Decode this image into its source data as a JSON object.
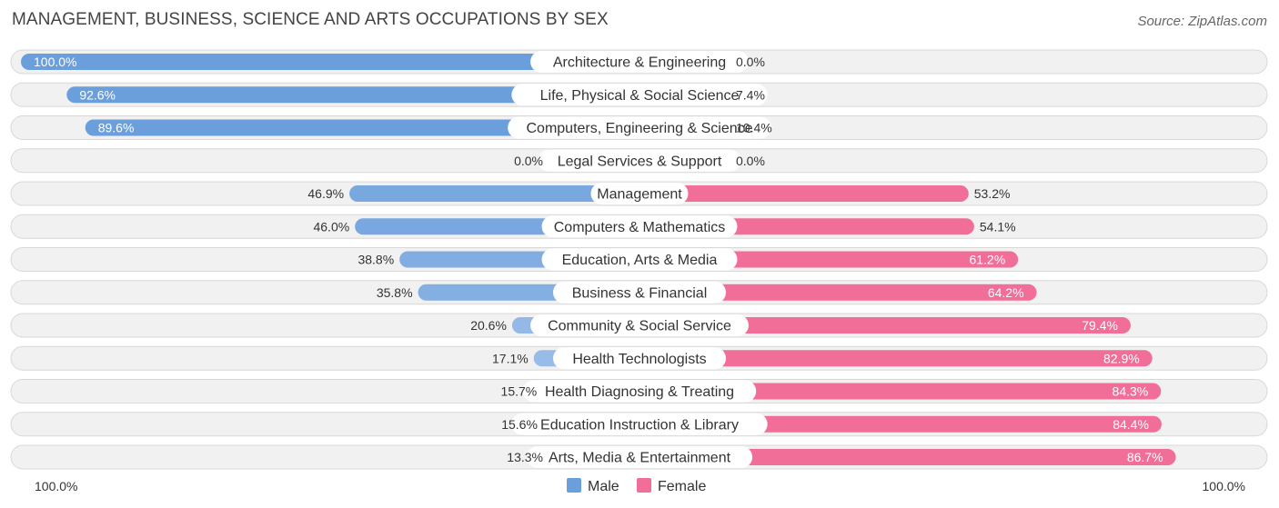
{
  "title": "MANAGEMENT, BUSINESS, SCIENCE AND ARTS OCCUPATIONS BY SEX",
  "source": "Source: ZipAtlas.com",
  "colors": {
    "male": "#6b9fdc",
    "male_light": "#a9c7ec",
    "female": "#f06e98",
    "female_light": "#f5a6c0"
  },
  "chart_data": {
    "type": "bar",
    "orientation": "horizontal-diverging",
    "title": "MANAGEMENT, BUSINESS, SCIENCE AND ARTS OCCUPATIONS BY SEX",
    "categories": [
      "Architecture & Engineering",
      "Life, Physical & Social Science",
      "Computers, Engineering & Science",
      "Legal Services & Support",
      "Management",
      "Computers & Mathematics",
      "Education, Arts & Media",
      "Business & Financial",
      "Community & Social Service",
      "Health Technologists",
      "Health Diagnosing & Treating",
      "Education Instruction & Library",
      "Arts, Media & Entertainment"
    ],
    "series": [
      {
        "name": "Male",
        "values": [
          100.0,
          92.6,
          89.6,
          0.0,
          46.9,
          46.0,
          38.8,
          35.8,
          20.6,
          17.1,
          15.7,
          15.6,
          13.3
        ],
        "labels": [
          "100.0%",
          "92.6%",
          "89.6%",
          "0.0%",
          "46.9%",
          "46.0%",
          "38.8%",
          "35.8%",
          "20.6%",
          "17.1%",
          "15.7%",
          "15.6%",
          "13.3%"
        ]
      },
      {
        "name": "Female",
        "values": [
          0.0,
          7.4,
          10.4,
          0.0,
          53.2,
          54.1,
          61.2,
          64.2,
          79.4,
          82.9,
          84.3,
          84.4,
          86.7
        ],
        "labels": [
          "0.0%",
          "7.4%",
          "10.4%",
          "0.0%",
          "53.2%",
          "54.1%",
          "61.2%",
          "64.2%",
          "79.4%",
          "82.9%",
          "84.3%",
          "84.4%",
          "86.7%"
        ]
      }
    ],
    "xlim": [
      0,
      100
    ],
    "axis_left_label": "100.0%",
    "axis_right_label": "100.0%",
    "legend": [
      "Male",
      "Female"
    ],
    "legend_position": "bottom-center"
  }
}
